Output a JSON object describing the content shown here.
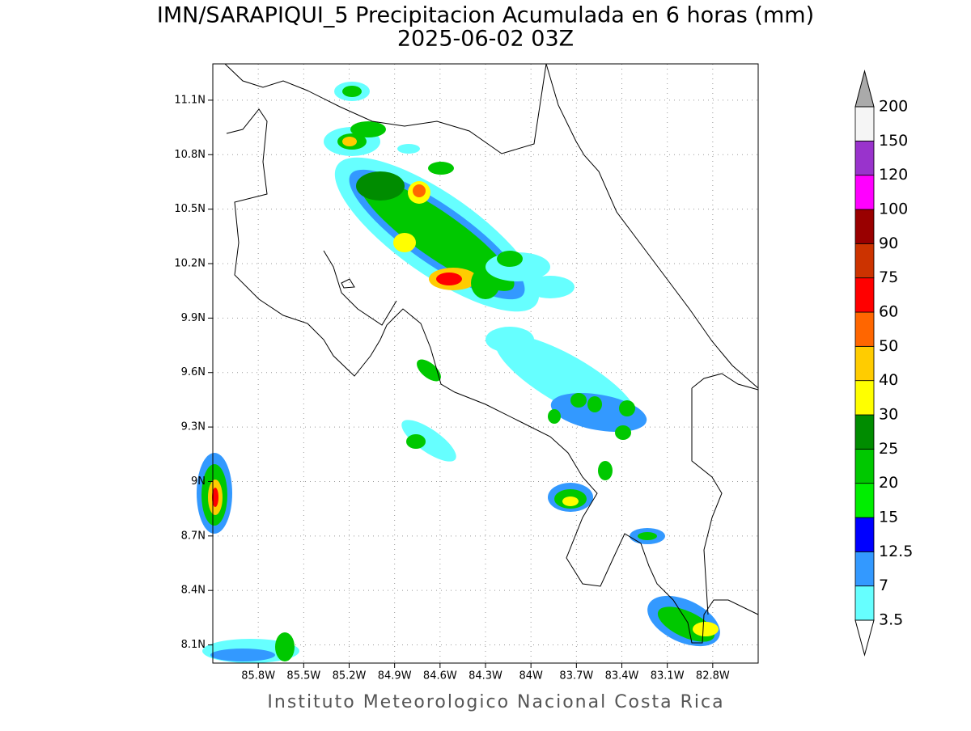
{
  "map": {
    "title": "IMN/SARAPIQUI_5 Precipitacion Acumulada en 6 horas (mm)",
    "subtitle": "2025-06-02 03Z",
    "xlim": [
      -86.1,
      -82.5
    ],
    "ylim": [
      8.0,
      11.3
    ],
    "xticks": [
      {
        "value": -85.8,
        "label": "85.8W"
      },
      {
        "value": -85.5,
        "label": "85.5W"
      },
      {
        "value": -85.2,
        "label": "85.2W"
      },
      {
        "value": -84.9,
        "label": "84.9W"
      },
      {
        "value": -84.6,
        "label": "84.6W"
      },
      {
        "value": -84.3,
        "label": "84.3W"
      },
      {
        "value": -84,
        "label": "84W"
      },
      {
        "value": -83.7,
        "label": "83.7W"
      },
      {
        "value": -83.4,
        "label": "83.4W"
      },
      {
        "value": -83.1,
        "label": "83.1W"
      },
      {
        "value": -82.8,
        "label": "82.8W"
      }
    ],
    "yticks": [
      {
        "value": 8.1,
        "label": "8.1N"
      },
      {
        "value": 8.4,
        "label": "8.4N"
      },
      {
        "value": 8.7,
        "label": "8.7N"
      },
      {
        "value": 9,
        "label": "9N"
      },
      {
        "value": 9.3,
        "label": "9.3N"
      },
      {
        "value": 9.6,
        "label": "9.6N"
      },
      {
        "value": 9.9,
        "label": "9.9N"
      },
      {
        "value": 10.2,
        "label": "10.2N"
      },
      {
        "value": 10.5,
        "label": "10.5N"
      },
      {
        "value": 10.8,
        "label": "10.8N"
      },
      {
        "value": 11.1,
        "label": "11.1N"
      }
    ],
    "grid": true
  },
  "colorbar": {
    "levels": [
      3.5,
      7,
      12.5,
      15,
      20,
      25,
      30,
      40,
      50,
      60,
      75,
      90,
      100,
      120,
      150,
      200
    ],
    "colors": [
      "#66ffff",
      "#3399ff",
      "#0000ff",
      "#00ee00",
      "#00c800",
      "#008c00",
      "#ffff00",
      "#ffcc00",
      "#ff6600",
      "#ff0000",
      "#cc3300",
      "#990000",
      "#ff00ff",
      "#9933cc",
      "#f5f5f5"
    ],
    "below_color": "#ffffff",
    "above_color": "#aaaaaa"
  },
  "footer": "Instituto Meteorologico Nacional Costa Rica"
}
